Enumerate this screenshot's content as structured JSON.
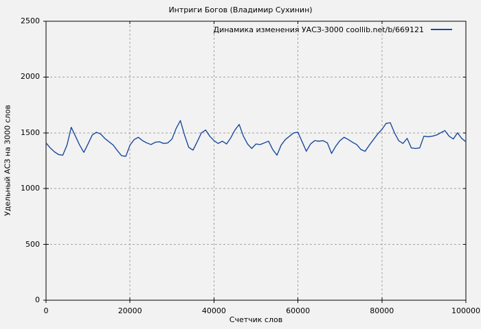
{
  "page": {
    "background": "#f2f2f2",
    "text_color": "#000000"
  },
  "chart_data": {
    "type": "line",
    "title": "Интриги Богов (Владимир Сухинин)",
    "xlabel": "Счетчик слов",
    "ylabel": "Удельный АСЗ на 3000 слов",
    "xlim": [
      0,
      100000
    ],
    "ylim": [
      0,
      2500
    ],
    "xticks": [
      0,
      20000,
      40000,
      60000,
      80000,
      100000
    ],
    "xtick_labels": [
      "0",
      "20000",
      "40000",
      "60000",
      "80000",
      "100000"
    ],
    "yticks": [
      0,
      500,
      1000,
      1500,
      2000,
      2500
    ],
    "ytick_labels": [
      "0",
      "500",
      "1000",
      "1500",
      "2000",
      "2500"
    ],
    "grid": "dashed",
    "grid_color": "#a0a0a0",
    "border_color": "#000000",
    "legend_position": "top-right-inside",
    "series": [
      {
        "name": "Динамика изменения УАСЗ-3000 coollib.net/b/669121",
        "color": "#1a4a9c",
        "x_start": 0,
        "x_step": 1000,
        "values": [
          1410,
          1365,
          1330,
          1305,
          1300,
          1390,
          1550,
          1470,
          1390,
          1325,
          1400,
          1480,
          1505,
          1490,
          1450,
          1420,
          1390,
          1340,
          1295,
          1290,
          1390,
          1440,
          1460,
          1430,
          1410,
          1395,
          1415,
          1420,
          1405,
          1410,
          1445,
          1540,
          1610,
          1480,
          1370,
          1345,
          1420,
          1500,
          1525,
          1470,
          1430,
          1405,
          1425,
          1400,
          1455,
          1525,
          1575,
          1470,
          1400,
          1360,
          1400,
          1395,
          1410,
          1425,
          1350,
          1300,
          1390,
          1440,
          1470,
          1500,
          1505,
          1420,
          1335,
          1400,
          1430,
          1425,
          1430,
          1410,
          1315,
          1380,
          1430,
          1460,
          1440,
          1415,
          1395,
          1350,
          1335,
          1390,
          1440,
          1490,
          1530,
          1585,
          1590,
          1500,
          1430,
          1405,
          1450,
          1365,
          1360,
          1365,
          1470,
          1465,
          1470,
          1480,
          1500,
          1520,
          1470,
          1445,
          1500,
          1450,
          1420
        ]
      }
    ]
  }
}
